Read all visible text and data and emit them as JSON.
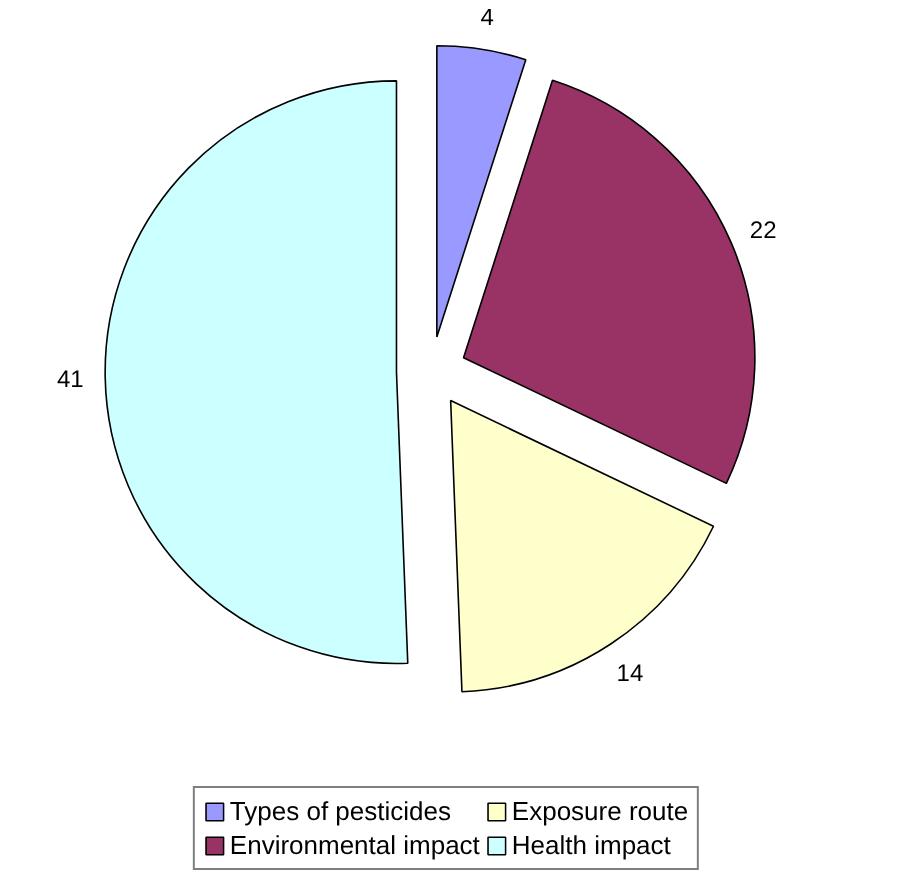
{
  "chart_data": {
    "type": "pie",
    "categories": [
      "Types of pesticides",
      "Environmental impact",
      "Exposure route",
      "Health impact"
    ],
    "values": [
      4,
      22,
      14,
      41
    ],
    "colors": [
      "#9999ff",
      "#993366",
      "#ffffcc",
      "#ccffff"
    ],
    "data_labels": true,
    "legend": "bottom"
  }
}
